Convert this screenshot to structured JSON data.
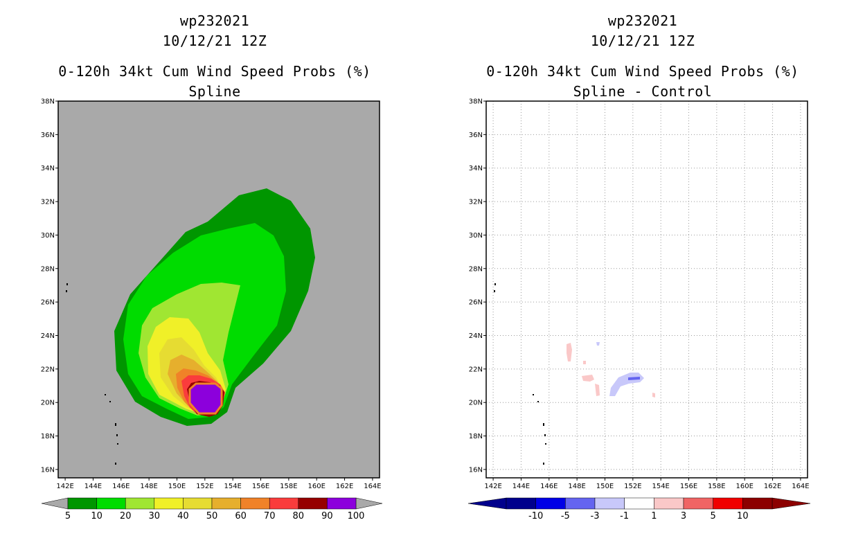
{
  "left_panel": {
    "title_line1": "wp232021",
    "title_line2": "10/12/21 12Z",
    "title_line3": "0-120h 34kt Cum Wind Speed Probs (%)",
    "title_line4": "Spline"
  },
  "right_panel": {
    "title_line1": "wp232021",
    "title_line2": "10/12/21 12Z",
    "title_line3": "0-120h 34kt Cum Wind Speed Probs (%)",
    "title_line4": "Spline - Control"
  },
  "chart_data": [
    {
      "type": "heatmap",
      "title": "0-120h 34kt Cum Wind Speed Probs (%) Spline",
      "lon_range": [
        141.5,
        164.5
      ],
      "lat_range": [
        15.5,
        38
      ],
      "x_ticks": [
        "142E",
        "144E",
        "146E",
        "148E",
        "150E",
        "152E",
        "154E",
        "156E",
        "158E",
        "160E",
        "162E",
        "164E"
      ],
      "y_ticks": [
        "16N",
        "18N",
        "20N",
        "22N",
        "24N",
        "26N",
        "28N",
        "30N",
        "32N",
        "34N",
        "36N",
        "38N"
      ],
      "background_color": "#a9a9a9",
      "colorbar": {
        "labels": [
          "5",
          "10",
          "20",
          "30",
          "40",
          "50",
          "60",
          "70",
          "80",
          "90",
          "100"
        ],
        "colors": [
          "#009600",
          "#00dc00",
          "#a0e632",
          "#f0f028",
          "#e6dc32",
          "#e6af2d",
          "#f08228",
          "#fa3c3c",
          "#960000",
          "#8c00dc"
        ]
      },
      "contour_levels": [
        5,
        10,
        20,
        30,
        40,
        50,
        60,
        70,
        80,
        90
      ],
      "max_prob_center": {
        "lon": 152.4,
        "lat": 20.4,
        "value": 90
      }
    },
    {
      "type": "heatmap",
      "title": "0-120h 34kt Cum Wind Speed Probs (%) Spline - Control",
      "lon_range": [
        141.5,
        164.5
      ],
      "lat_range": [
        15.5,
        38
      ],
      "x_ticks": [
        "142E",
        "144E",
        "146E",
        "148E",
        "150E",
        "152E",
        "154E",
        "156E",
        "158E",
        "160E",
        "162E",
        "164E"
      ],
      "y_ticks": [
        "16N",
        "18N",
        "20N",
        "22N",
        "24N",
        "26N",
        "28N",
        "30N",
        "32N",
        "34N",
        "36N",
        "38N"
      ],
      "grid": true,
      "background_color": "#ffffff",
      "colorbar": {
        "labels": [
          "-10",
          "-5",
          "-3",
          "-1",
          "1",
          "3",
          "5",
          "10"
        ],
        "colors": [
          "#00008c",
          "#0000e6",
          "#6464f0",
          "#c8c8fa",
          "#ffffff",
          "#fac8c8",
          "#f06464",
          "#f00000",
          "#8c0000"
        ]
      }
    }
  ]
}
